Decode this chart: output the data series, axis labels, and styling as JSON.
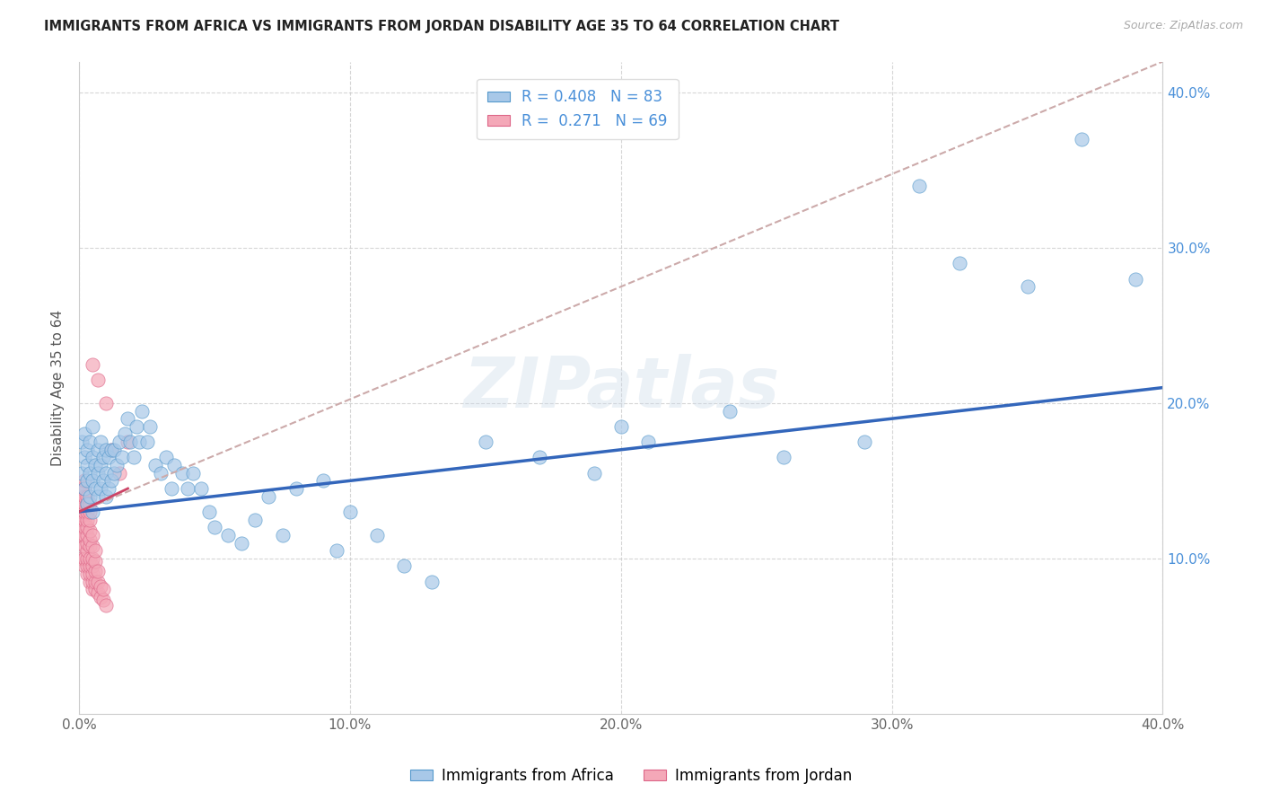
{
  "title": "IMMIGRANTS FROM AFRICA VS IMMIGRANTS FROM JORDAN DISABILITY AGE 35 TO 64 CORRELATION CHART",
  "source": "Source: ZipAtlas.com",
  "ylabel": "Disability Age 35 to 64",
  "xlim": [
    0.0,
    0.4
  ],
  "ylim": [
    0.0,
    0.42
  ],
  "xtick_labels": [
    "0.0%",
    "10.0%",
    "20.0%",
    "30.0%",
    "40.0%"
  ],
  "xtick_vals": [
    0.0,
    0.1,
    0.2,
    0.3,
    0.4
  ],
  "ytick_labels": [
    "10.0%",
    "20.0%",
    "30.0%",
    "40.0%"
  ],
  "ytick_vals": [
    0.1,
    0.2,
    0.3,
    0.4
  ],
  "africa_color": "#a8c8e8",
  "jordan_color": "#f4a8b8",
  "africa_edge_color": "#5599cc",
  "jordan_edge_color": "#dd6688",
  "africa_line_color": "#3366bb",
  "jordan_line_color": "#cc4466",
  "jordan_dash_color": "#ccaaaa",
  "watermark": "ZIPatlas",
  "legend_R_africa": "0.408",
  "legend_N_africa": "83",
  "legend_R_jordan": "0.271",
  "legend_N_jordan": "69",
  "legend_label_africa": "Immigrants from Africa",
  "legend_label_jordan": "Immigrants from Jordan",
  "africa_x": [
    0.001,
    0.001,
    0.002,
    0.002,
    0.002,
    0.003,
    0.003,
    0.003,
    0.003,
    0.004,
    0.004,
    0.004,
    0.005,
    0.005,
    0.005,
    0.005,
    0.006,
    0.006,
    0.007,
    0.007,
    0.007,
    0.008,
    0.008,
    0.008,
    0.009,
    0.009,
    0.01,
    0.01,
    0.01,
    0.011,
    0.011,
    0.012,
    0.012,
    0.013,
    0.013,
    0.014,
    0.015,
    0.016,
    0.017,
    0.018,
    0.019,
    0.02,
    0.021,
    0.022,
    0.023,
    0.025,
    0.026,
    0.028,
    0.03,
    0.032,
    0.034,
    0.035,
    0.038,
    0.04,
    0.042,
    0.045,
    0.048,
    0.05,
    0.055,
    0.06,
    0.065,
    0.07,
    0.075,
    0.08,
    0.09,
    0.095,
    0.1,
    0.11,
    0.12,
    0.13,
    0.15,
    0.17,
    0.19,
    0.2,
    0.21,
    0.24,
    0.26,
    0.29,
    0.31,
    0.325,
    0.35,
    0.37,
    0.39
  ],
  "africa_y": [
    0.155,
    0.175,
    0.145,
    0.165,
    0.18,
    0.135,
    0.15,
    0.16,
    0.17,
    0.14,
    0.155,
    0.175,
    0.13,
    0.15,
    0.165,
    0.185,
    0.145,
    0.16,
    0.14,
    0.155,
    0.17,
    0.145,
    0.16,
    0.175,
    0.15,
    0.165,
    0.14,
    0.155,
    0.17,
    0.145,
    0.165,
    0.15,
    0.17,
    0.155,
    0.17,
    0.16,
    0.175,
    0.165,
    0.18,
    0.19,
    0.175,
    0.165,
    0.185,
    0.175,
    0.195,
    0.175,
    0.185,
    0.16,
    0.155,
    0.165,
    0.145,
    0.16,
    0.155,
    0.145,
    0.155,
    0.145,
    0.13,
    0.12,
    0.115,
    0.11,
    0.125,
    0.14,
    0.115,
    0.145,
    0.15,
    0.105,
    0.13,
    0.115,
    0.095,
    0.085,
    0.175,
    0.165,
    0.155,
    0.185,
    0.175,
    0.195,
    0.165,
    0.175,
    0.34,
    0.29,
    0.275,
    0.37,
    0.28
  ],
  "jordan_x": [
    0.001,
    0.001,
    0.001,
    0.001,
    0.001,
    0.001,
    0.001,
    0.001,
    0.001,
    0.001,
    0.001,
    0.002,
    0.002,
    0.002,
    0.002,
    0.002,
    0.002,
    0.002,
    0.002,
    0.002,
    0.002,
    0.002,
    0.003,
    0.003,
    0.003,
    0.003,
    0.003,
    0.003,
    0.003,
    0.003,
    0.003,
    0.003,
    0.003,
    0.004,
    0.004,
    0.004,
    0.004,
    0.004,
    0.004,
    0.004,
    0.004,
    0.004,
    0.004,
    0.005,
    0.005,
    0.005,
    0.005,
    0.005,
    0.005,
    0.005,
    0.005,
    0.006,
    0.006,
    0.006,
    0.006,
    0.006,
    0.007,
    0.007,
    0.007,
    0.007,
    0.008,
    0.008,
    0.009,
    0.009,
    0.01,
    0.01,
    0.012,
    0.015,
    0.018
  ],
  "jordan_y": [
    0.1,
    0.11,
    0.115,
    0.12,
    0.125,
    0.128,
    0.13,
    0.135,
    0.138,
    0.14,
    0.145,
    0.095,
    0.1,
    0.108,
    0.115,
    0.12,
    0.125,
    0.13,
    0.135,
    0.14,
    0.145,
    0.15,
    0.09,
    0.095,
    0.1,
    0.105,
    0.11,
    0.115,
    0.12,
    0.125,
    0.13,
    0.135,
    0.14,
    0.085,
    0.09,
    0.095,
    0.1,
    0.108,
    0.112,
    0.118,
    0.125,
    0.13,
    0.135,
    0.08,
    0.085,
    0.09,
    0.095,
    0.1,
    0.108,
    0.115,
    0.225,
    0.08,
    0.085,
    0.092,
    0.098,
    0.105,
    0.078,
    0.085,
    0.092,
    0.215,
    0.075,
    0.082,
    0.073,
    0.08,
    0.07,
    0.2,
    0.17,
    0.155,
    0.175
  ]
}
